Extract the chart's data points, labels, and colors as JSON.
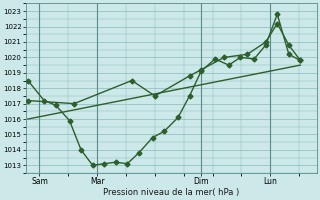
{
  "xlabel": "Pression niveau de la mer( hPa )",
  "ylim": [
    1012.5,
    1023.5
  ],
  "xlim": [
    -0.1,
    12.5
  ],
  "yticks": [
    1013,
    1014,
    1015,
    1016,
    1017,
    1018,
    1019,
    1020,
    1021,
    1022,
    1023
  ],
  "bg_color": "#cce8e8",
  "line_color": "#2d5e2d",
  "grid_color": "#88bbbb",
  "xtick_labels": [
    "Sam",
    "Mar",
    "Dim",
    "Lun"
  ],
  "xtick_positions": [
    0.5,
    3.0,
    7.5,
    10.5
  ],
  "vline_positions": [
    0.5,
    3.0,
    7.5,
    10.5
  ],
  "line1_x": [
    0.0,
    0.7,
    1.2,
    1.8,
    2.3,
    2.8,
    3.3,
    3.8,
    4.3,
    4.8,
    5.4,
    5.9,
    6.5,
    7.0,
    7.5,
    8.1,
    8.7,
    9.2,
    9.8,
    10.3,
    10.8,
    11.3,
    11.8
  ],
  "line1_y": [
    1018.5,
    1017.2,
    1016.9,
    1015.9,
    1014.0,
    1013.0,
    1013.1,
    1013.2,
    1013.1,
    1013.8,
    1014.8,
    1015.2,
    1016.1,
    1017.5,
    1019.1,
    1019.9,
    1019.5,
    1020.0,
    1019.9,
    1020.8,
    1022.8,
    1020.2,
    1019.8
  ],
  "line2_x": [
    0.0,
    2.0,
    4.5,
    5.5,
    7.0,
    7.5,
    8.5,
    9.5,
    10.3,
    10.8,
    11.3,
    11.8
  ],
  "line2_y": [
    1017.2,
    1017.0,
    1018.5,
    1017.5,
    1018.8,
    1019.2,
    1020.0,
    1020.2,
    1021.0,
    1022.2,
    1020.8,
    1019.8
  ],
  "line3_x": [
    0.0,
    11.8
  ],
  "line3_y": [
    1016.0,
    1019.5
  ],
  "marker": "D",
  "ms": 2.5,
  "lw": 1.0
}
